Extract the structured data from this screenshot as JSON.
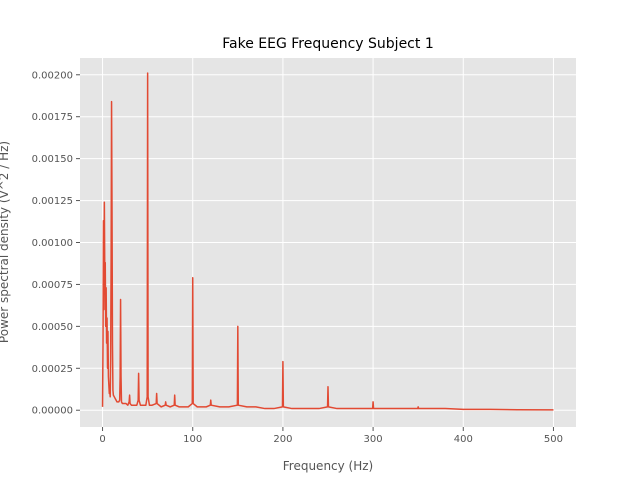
{
  "chart_data": {
    "type": "line",
    "title": "Fake EEG Frequency Subject 1",
    "xlabel": "Frequency (Hz)",
    "ylabel": "Power spectral density (V^2 / Hz)",
    "xlim": [
      -25,
      525
    ],
    "ylim": [
      -0.0001,
      0.0021
    ],
    "xticks": [
      0,
      100,
      200,
      300,
      400,
      500
    ],
    "xtick_labels": [
      "0",
      "100",
      "200",
      "300",
      "400",
      "500"
    ],
    "yticks": [
      0,
      0.00025,
      0.0005,
      0.00075,
      0.001,
      0.00125,
      0.0015,
      0.00175,
      0.002
    ],
    "ytick_labels": [
      "0.00000",
      "0.00025",
      "0.00050",
      "0.00075",
      "0.00100",
      "0.00125",
      "0.00150",
      "0.00175",
      "0.00200"
    ],
    "grid": true,
    "colors": {
      "line": "#E24A33",
      "background": "#E5E5E5",
      "grid": "#FFFFFF"
    },
    "series": [
      {
        "x": [
          0,
          0.5,
          1,
          1.5,
          2,
          2.5,
          3,
          3.5,
          4,
          4.5,
          5,
          5.5,
          6,
          6.5,
          7,
          7.5,
          8,
          8.5,
          9,
          9.5,
          10,
          10.5,
          11,
          11.5,
          12,
          13,
          14,
          15,
          16,
          17,
          18,
          19,
          19.5,
          20,
          20.5,
          21,
          22,
          24,
          26,
          28,
          29.5,
          30,
          30.5,
          32,
          34,
          36,
          38,
          39.5,
          40,
          40.5,
          42,
          44,
          46,
          48,
          49.5,
          50,
          50.5,
          52,
          55,
          59.5,
          60,
          60.5,
          65,
          69.5,
          70,
          70.5,
          75,
          79.5,
          80,
          80.5,
          85,
          90,
          95,
          99.5,
          100,
          100.5,
          105,
          110,
          115,
          119.5,
          120,
          120.5,
          130,
          140,
          149.5,
          150,
          150.5,
          160,
          170,
          180,
          190,
          199.5,
          200,
          200.5,
          210,
          220,
          230,
          240,
          249.5,
          250,
          250.5,
          260,
          280,
          299.5,
          300,
          300.5,
          320,
          349.5,
          350,
          350.5,
          380,
          400,
          430,
          460,
          500
        ],
        "y": [
          2e-05,
          0.0004,
          0.00113,
          0.0006,
          0.00124,
          0.0008,
          0.00088,
          0.0005,
          0.00073,
          0.0004,
          0.00055,
          0.00025,
          0.00047,
          0.0002,
          0.00015,
          0.0001,
          0.00012,
          8e-05,
          0.0003,
          0.0009,
          0.00184,
          0.0012,
          0.0004,
          0.00012,
          9e-05,
          8e-05,
          7e-05,
          6e-05,
          5e-05,
          5e-05,
          5e-05,
          6e-05,
          0.0002,
          0.00066,
          0.0002,
          5e-05,
          4e-05,
          4e-05,
          4e-05,
          3e-05,
          5e-05,
          9e-05,
          4e-05,
          3e-05,
          3e-05,
          3e-05,
          3e-05,
          6e-05,
          0.00022,
          6e-05,
          3e-05,
          3e-05,
          3e-05,
          3e-05,
          8e-05,
          0.00201,
          8e-05,
          3e-05,
          3e-05,
          4e-05,
          0.0001,
          4e-05,
          2e-05,
          3e-05,
          5e-05,
          3e-05,
          2e-05,
          3e-05,
          9e-05,
          3e-05,
          2e-05,
          2e-05,
          2e-05,
          4e-05,
          0.00079,
          4e-05,
          2e-05,
          2e-05,
          2e-05,
          3e-05,
          6e-05,
          3e-05,
          2e-05,
          2e-05,
          3e-05,
          0.0005,
          3e-05,
          2e-05,
          2e-05,
          1e-05,
          1e-05,
          2e-05,
          0.00029,
          2e-05,
          1e-05,
          1e-05,
          1e-05,
          1e-05,
          2e-05,
          0.00014,
          2e-05,
          1e-05,
          1e-05,
          1e-05,
          5e-05,
          1e-05,
          1e-05,
          1e-05,
          2e-05,
          1e-05,
          1e-05,
          5e-06,
          5e-06,
          3e-06,
          2e-06
        ]
      }
    ]
  }
}
